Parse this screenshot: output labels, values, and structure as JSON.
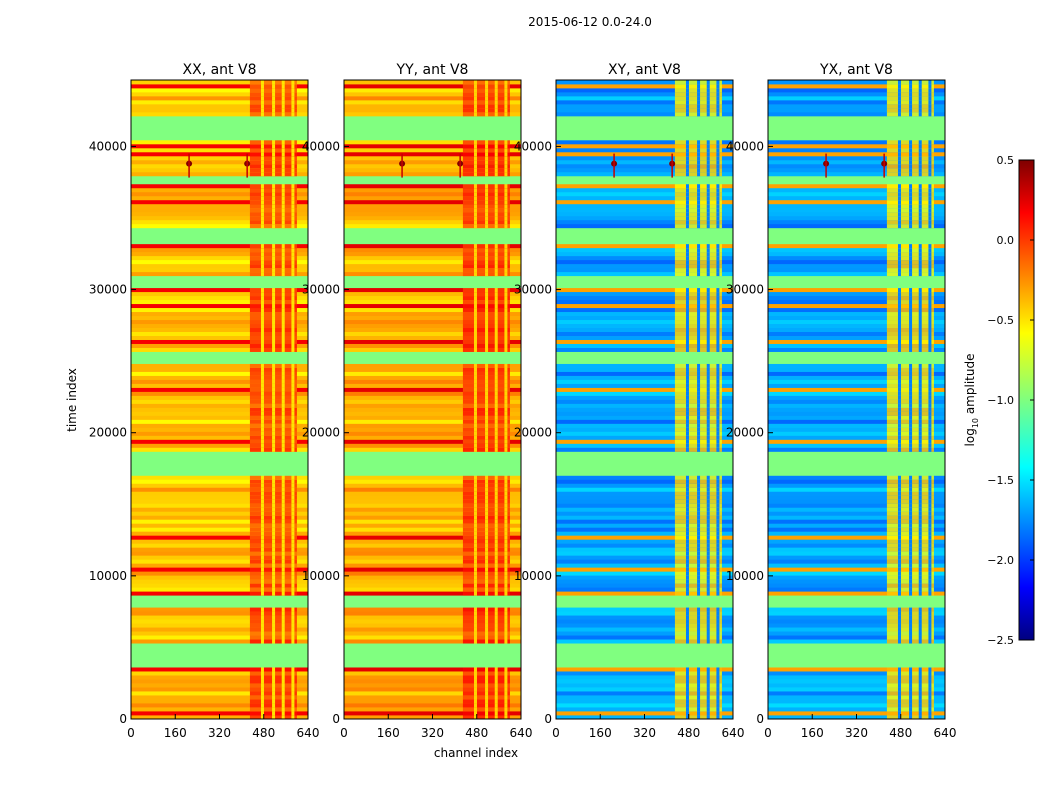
{
  "suptitle": "2015-06-12 0.0-24.0",
  "chart_data": {
    "type": "heatmap",
    "colormap": "jet",
    "shared_ylabel": "time index",
    "shared_xlabel": "channel index",
    "xlim": [
      0,
      640
    ],
    "ylim": [
      0,
      44640
    ],
    "x_ticks": [
      "0",
      "160",
      "320",
      "480",
      "640"
    ],
    "y_ticks": [
      "0",
      "10000",
      "20000",
      "30000",
      "40000"
    ],
    "colorbar": {
      "label": "log",
      "label_sub": "10",
      "label_rest": " amplitude",
      "range": [
        -2.5,
        0.5
      ],
      "ticks": [
        "0.5",
        "0.0",
        "−0.5",
        "−1.0",
        "−1.5",
        "−2.0",
        "−2.5"
      ]
    },
    "panels": [
      {
        "title": "XX, ant V8",
        "base_level": -0.45,
        "hot_level": -0.05
      },
      {
        "title": "YY, ant V8",
        "base_level": -0.4,
        "hot_level": 0.0
      },
      {
        "title": "XY, ant V8",
        "base_level": -1.65,
        "hot_level": -0.55
      },
      {
        "title": "YX, ant V8",
        "base_level": -1.65,
        "hot_level": -0.55
      }
    ],
    "flagged_level": -1.0,
    "flagged_time_ranges": [
      [
        3500,
        5200
      ],
      [
        7900,
        8700
      ],
      [
        17000,
        18700
      ],
      [
        24800,
        25600
      ],
      [
        30000,
        31000
      ],
      [
        33200,
        34300
      ],
      [
        37300,
        38000
      ],
      [
        40500,
        42000
      ]
    ],
    "hot_channel_range": [
      430,
      600
    ],
    "rfi_time_index": 38800,
    "rfi_channels": [
      210,
      420
    ]
  }
}
